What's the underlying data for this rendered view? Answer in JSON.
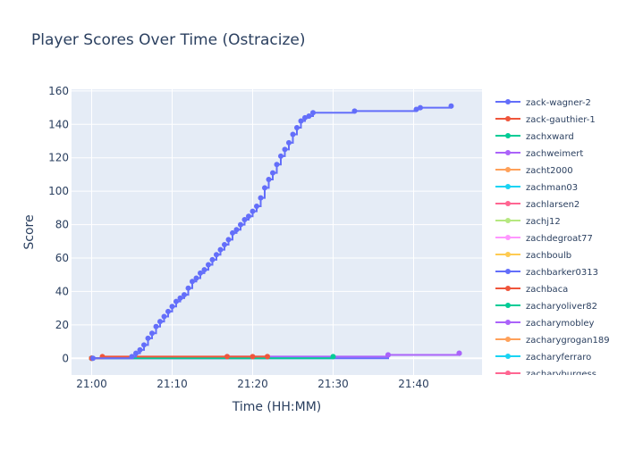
{
  "chart_data": {
    "type": "line",
    "title": "Player Scores Over Time (Ostracize)",
    "xlabel": "Time (HH:MM)",
    "ylabel": "Score",
    "x_unit": "time",
    "xlim": [
      "20:57:30",
      "21:48:30"
    ],
    "ylim": [
      -10,
      161
    ],
    "x_ticks": [
      "21:00",
      "21:10",
      "21:20",
      "21:30",
      "21:40"
    ],
    "y_ticks": [
      0,
      20,
      40,
      60,
      80,
      100,
      120,
      140,
      160
    ],
    "grid": true,
    "legend_position": "right",
    "colors": {
      "plot_bg": "#e5ecf6",
      "grid": "#ffffff",
      "text": "#2a3f5f",
      "palette": [
        "#636efa",
        "#ef553b",
        "#00cc96",
        "#ab63fa",
        "#ffa15a",
        "#19d3f3",
        "#ff6692",
        "#b6e880",
        "#ff97ff",
        "#fecb52"
      ]
    },
    "series": [
      {
        "name": "zack-wagner-2",
        "x": [
          "21:00:10",
          "21:05:00",
          "21:05:30",
          "21:06:00",
          "21:06:30",
          "21:07:00",
          "21:07:30",
          "21:08:00",
          "21:08:30",
          "21:09:00",
          "21:09:30",
          "21:10:00",
          "21:10:30",
          "21:11:00",
          "21:11:30",
          "21:12:00",
          "21:12:30",
          "21:13:00",
          "21:13:30",
          "21:14:00",
          "21:14:30",
          "21:15:00",
          "21:15:30",
          "21:16:00",
          "21:16:30",
          "21:17:00",
          "21:17:30",
          "21:18:00",
          "21:18:30",
          "21:19:00",
          "21:19:30",
          "21:20:00",
          "21:20:30",
          "21:21:00",
          "21:21:30",
          "21:22:00",
          "21:22:30",
          "21:23:00",
          "21:23:30",
          "21:24:00",
          "21:24:30",
          "21:25:00",
          "21:25:30",
          "21:26:00",
          "21:26:30",
          "21:27:00",
          "21:27:30",
          "21:32:40",
          "21:40:20",
          "21:40:50",
          "21:44:40"
        ],
        "y": [
          0,
          1,
          3,
          5,
          8,
          12,
          15,
          19,
          22,
          25,
          28,
          31,
          34,
          36,
          38,
          42,
          46,
          48,
          51,
          53,
          56,
          59,
          62,
          65,
          68,
          71,
          75,
          77,
          80,
          83,
          85,
          88,
          91,
          96,
          102,
          107,
          111,
          116,
          121,
          125,
          129,
          134,
          138,
          142,
          144,
          145,
          147,
          148,
          149,
          150,
          151
        ]
      },
      {
        "name": "zack-gauthier-1",
        "x": [
          "21:00:00",
          "21:01:20",
          "21:16:50",
          "21:20:00",
          "21:21:50"
        ],
        "y": [
          0,
          1,
          1,
          1,
          1
        ]
      },
      {
        "name": "zachxward",
        "x": [
          "21:00:00",
          "21:30:00"
        ],
        "y": [
          0,
          1
        ]
      },
      {
        "name": "zachweimert",
        "x": [
          "21:00:00",
          "21:16:50",
          "21:36:50",
          "21:45:40"
        ],
        "y": [
          0,
          1,
          2,
          3
        ]
      },
      {
        "name": "zacht2000",
        "x": [
          "21:00:00"
        ],
        "y": [
          0
        ]
      },
      {
        "name": "zachman03",
        "x": [
          "21:00:00"
        ],
        "y": [
          0
        ]
      },
      {
        "name": "zachlarsen2",
        "x": [
          "21:00:00"
        ],
        "y": [
          0
        ]
      },
      {
        "name": "zachj12",
        "x": [
          "21:00:00"
        ],
        "y": [
          0
        ]
      },
      {
        "name": "zachdegroat77",
        "x": [
          "21:00:00"
        ],
        "y": [
          0
        ]
      },
      {
        "name": "zachboulb",
        "x": [
          "21:00:00"
        ],
        "y": [
          0
        ]
      },
      {
        "name": "zachbarker0313",
        "x": [
          "21:00:00",
          "21:36:50",
          "21:45:40"
        ],
        "y": [
          0,
          2,
          3
        ]
      },
      {
        "name": "zachbaca",
        "x": [
          "21:00:00",
          "21:21:50"
        ],
        "y": [
          0,
          1
        ]
      },
      {
        "name": "zacharyoliver82",
        "x": [
          "21:00:00"
        ],
        "y": [
          0
        ]
      },
      {
        "name": "zacharymobley",
        "x": [
          "21:00:00"
        ],
        "y": [
          0
        ]
      },
      {
        "name": "zacharygrogan189",
        "x": [
          "21:00:00"
        ],
        "y": [
          0
        ]
      },
      {
        "name": "zacharyferraro",
        "x": [
          "21:00:00"
        ],
        "y": [
          0
        ]
      },
      {
        "name": "zacharyburgess",
        "x": [
          "21:00:00"
        ],
        "y": [
          0
        ]
      }
    ]
  }
}
